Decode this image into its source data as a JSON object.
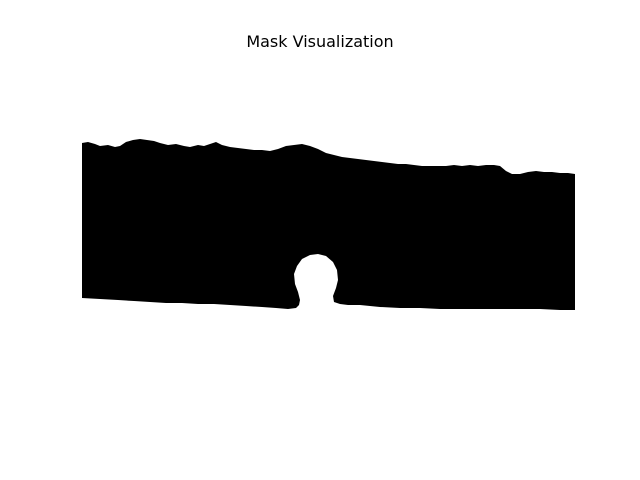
{
  "figure": {
    "title": "Mask Visualization",
    "colors": {
      "background": "#ffffff",
      "mask_foreground": "#000000",
      "text": "#000000"
    },
    "colormap": "binary"
  }
}
